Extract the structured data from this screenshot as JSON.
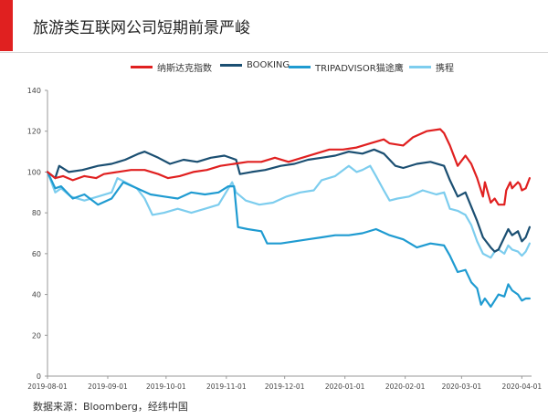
{
  "header": {
    "title": "旅游类互联网公司短期前景严峻",
    "accent_color": "#e02020"
  },
  "footer": {
    "source": "数据来源：Bloomberg，经纬中国"
  },
  "chart_data": {
    "type": "line",
    "title": "旅游类互联网公司短期前景严峻",
    "xlabel": "",
    "ylabel": "",
    "ylim": [
      0,
      140
    ],
    "yticks": [
      0,
      20,
      40,
      60,
      80,
      100,
      120,
      140
    ],
    "xlim": [
      "2019-08-01",
      "2020-04-06"
    ],
    "xticks": [
      "2019-08-01",
      "2019-09-01",
      "2019-10-01",
      "2019-11-01",
      "2019-12-01",
      "2020-01-01",
      "2020-02-01",
      "2020-03-01",
      "2020-04-01"
    ],
    "grid": false,
    "legend_position": "top",
    "series": [
      {
        "name": "纳斯达克指数",
        "color": "#e02020",
        "points": [
          [
            "2019-08-01",
            100
          ],
          [
            "2019-08-05",
            97
          ],
          [
            "2019-08-09",
            98
          ],
          [
            "2019-08-14",
            96
          ],
          [
            "2019-08-20",
            98
          ],
          [
            "2019-08-26",
            97
          ],
          [
            "2019-08-30",
            99
          ],
          [
            "2019-09-06",
            100
          ],
          [
            "2019-09-13",
            101
          ],
          [
            "2019-09-20",
            101
          ],
          [
            "2019-09-27",
            99
          ],
          [
            "2019-10-02",
            97
          ],
          [
            "2019-10-08",
            98
          ],
          [
            "2019-10-15",
            100
          ],
          [
            "2019-10-22",
            101
          ],
          [
            "2019-10-29",
            103
          ],
          [
            "2019-11-05",
            104
          ],
          [
            "2019-11-12",
            105
          ],
          [
            "2019-11-19",
            105
          ],
          [
            "2019-11-26",
            107
          ],
          [
            "2019-12-03",
            105
          ],
          [
            "2019-12-10",
            107
          ],
          [
            "2019-12-17",
            109
          ],
          [
            "2019-12-24",
            111
          ],
          [
            "2019-12-31",
            111
          ],
          [
            "2020-01-07",
            112
          ],
          [
            "2020-01-14",
            114
          ],
          [
            "2020-01-21",
            116
          ],
          [
            "2020-01-24",
            114
          ],
          [
            "2020-01-31",
            113
          ],
          [
            "2020-02-05",
            117
          ],
          [
            "2020-02-12",
            120
          ],
          [
            "2020-02-19",
            121
          ],
          [
            "2020-02-21",
            119
          ],
          [
            "2020-02-24",
            113
          ],
          [
            "2020-02-28",
            103
          ],
          [
            "2020-03-03",
            108
          ],
          [
            "2020-03-06",
            104
          ],
          [
            "2020-03-09",
            97
          ],
          [
            "2020-03-12",
            88
          ],
          [
            "2020-03-13",
            95
          ],
          [
            "2020-03-16",
            85
          ],
          [
            "2020-03-18",
            87
          ],
          [
            "2020-03-20",
            84
          ],
          [
            "2020-03-23",
            84
          ],
          [
            "2020-03-24",
            91
          ],
          [
            "2020-03-26",
            95
          ],
          [
            "2020-03-27",
            92
          ],
          [
            "2020-03-30",
            95
          ],
          [
            "2020-03-31",
            94
          ],
          [
            "2020-04-01",
            91
          ],
          [
            "2020-04-03",
            92
          ],
          [
            "2020-04-05",
            97
          ]
        ]
      },
      {
        "name": "BOOKING",
        "color": "#1b4f72",
        "points": [
          [
            "2019-08-01",
            100
          ],
          [
            "2019-08-05",
            97
          ],
          [
            "2019-08-07",
            103
          ],
          [
            "2019-08-12",
            100
          ],
          [
            "2019-08-19",
            101
          ],
          [
            "2019-08-27",
            103
          ],
          [
            "2019-09-03",
            104
          ],
          [
            "2019-09-10",
            106
          ],
          [
            "2019-09-17",
            109
          ],
          [
            "2019-09-20",
            110
          ],
          [
            "2019-09-27",
            107
          ],
          [
            "2019-10-03",
            104
          ],
          [
            "2019-10-10",
            106
          ],
          [
            "2019-10-17",
            105
          ],
          [
            "2019-10-24",
            107
          ],
          [
            "2019-10-31",
            108
          ],
          [
            "2019-11-06",
            106
          ],
          [
            "2019-11-08",
            99
          ],
          [
            "2019-11-14",
            100
          ],
          [
            "2019-11-21",
            101
          ],
          [
            "2019-11-29",
            103
          ],
          [
            "2019-12-06",
            104
          ],
          [
            "2019-12-13",
            106
          ],
          [
            "2019-12-20",
            107
          ],
          [
            "2019-12-27",
            108
          ],
          [
            "2020-01-03",
            110
          ],
          [
            "2020-01-10",
            109
          ],
          [
            "2020-01-16",
            111
          ],
          [
            "2020-01-21",
            109
          ],
          [
            "2020-01-27",
            103
          ],
          [
            "2020-01-31",
            102
          ],
          [
            "2020-02-07",
            104
          ],
          [
            "2020-02-14",
            105
          ],
          [
            "2020-02-21",
            103
          ],
          [
            "2020-02-24",
            96
          ],
          [
            "2020-02-28",
            88
          ],
          [
            "2020-03-03",
            90
          ],
          [
            "2020-03-06",
            83
          ],
          [
            "2020-03-09",
            76
          ],
          [
            "2020-03-12",
            68
          ],
          [
            "2020-03-16",
            63
          ],
          [
            "2020-03-18",
            61
          ],
          [
            "2020-03-20",
            62
          ],
          [
            "2020-03-23",
            68
          ],
          [
            "2020-03-25",
            72
          ],
          [
            "2020-03-27",
            69
          ],
          [
            "2020-03-30",
            71
          ],
          [
            "2020-04-01",
            66
          ],
          [
            "2020-04-03",
            68
          ],
          [
            "2020-04-05",
            73
          ]
        ]
      },
      {
        "name": "TRIPADVISOR猫途鹰",
        "color": "#1f9bd1",
        "points": [
          [
            "2019-08-01",
            100
          ],
          [
            "2019-08-05",
            92
          ],
          [
            "2019-08-08",
            93
          ],
          [
            "2019-08-14",
            87
          ],
          [
            "2019-08-20",
            89
          ],
          [
            "2019-08-27",
            84
          ],
          [
            "2019-09-03",
            87
          ],
          [
            "2019-09-09",
            95
          ],
          [
            "2019-09-16",
            92
          ],
          [
            "2019-09-23",
            89
          ],
          [
            "2019-09-30",
            88
          ],
          [
            "2019-10-07",
            87
          ],
          [
            "2019-10-14",
            90
          ],
          [
            "2019-10-21",
            89
          ],
          [
            "2019-10-28",
            90
          ],
          [
            "2019-11-02",
            93
          ],
          [
            "2019-11-05",
            93
          ],
          [
            "2019-11-07",
            73
          ],
          [
            "2019-11-12",
            72
          ],
          [
            "2019-11-19",
            71
          ],
          [
            "2019-11-22",
            65
          ],
          [
            "2019-11-29",
            65
          ],
          [
            "2019-12-06",
            66
          ],
          [
            "2019-12-13",
            67
          ],
          [
            "2019-12-20",
            68
          ],
          [
            "2019-12-27",
            69
          ],
          [
            "2020-01-03",
            69
          ],
          [
            "2020-01-10",
            70
          ],
          [
            "2020-01-17",
            72
          ],
          [
            "2020-01-24",
            69
          ],
          [
            "2020-01-31",
            67
          ],
          [
            "2020-02-07",
            63
          ],
          [
            "2020-02-14",
            65
          ],
          [
            "2020-02-21",
            64
          ],
          [
            "2020-02-24",
            59
          ],
          [
            "2020-02-28",
            51
          ],
          [
            "2020-03-03",
            52
          ],
          [
            "2020-03-06",
            46
          ],
          [
            "2020-03-09",
            43
          ],
          [
            "2020-03-11",
            35
          ],
          [
            "2020-03-13",
            38
          ],
          [
            "2020-03-16",
            34
          ],
          [
            "2020-03-18",
            37
          ],
          [
            "2020-03-20",
            40
          ],
          [
            "2020-03-23",
            39
          ],
          [
            "2020-03-25",
            45
          ],
          [
            "2020-03-27",
            42
          ],
          [
            "2020-03-30",
            40
          ],
          [
            "2020-04-01",
            37
          ],
          [
            "2020-04-03",
            38
          ],
          [
            "2020-04-05",
            38
          ]
        ]
      },
      {
        "name": "携程",
        "color": "#7dcdee",
        "points": [
          [
            "2019-08-01",
            100
          ],
          [
            "2019-08-05",
            90
          ],
          [
            "2019-08-08",
            92
          ],
          [
            "2019-08-13",
            88
          ],
          [
            "2019-08-20",
            86
          ],
          [
            "2019-08-27",
            88
          ],
          [
            "2019-09-03",
            90
          ],
          [
            "2019-09-06",
            97
          ],
          [
            "2019-09-10",
            95
          ],
          [
            "2019-09-16",
            92
          ],
          [
            "2019-09-20",
            87
          ],
          [
            "2019-09-24",
            79
          ],
          [
            "2019-09-30",
            80
          ],
          [
            "2019-10-07",
            82
          ],
          [
            "2019-10-14",
            80
          ],
          [
            "2019-10-21",
            82
          ],
          [
            "2019-10-28",
            84
          ],
          [
            "2019-11-04",
            95
          ],
          [
            "2019-11-06",
            90
          ],
          [
            "2019-11-11",
            86
          ],
          [
            "2019-11-18",
            84
          ],
          [
            "2019-11-25",
            85
          ],
          [
            "2019-12-02",
            88
          ],
          [
            "2019-12-09",
            90
          ],
          [
            "2019-12-16",
            91
          ],
          [
            "2019-12-20",
            96
          ],
          [
            "2019-12-27",
            98
          ],
          [
            "2020-01-03",
            103
          ],
          [
            "2020-01-07",
            100
          ],
          [
            "2020-01-10",
            101
          ],
          [
            "2020-01-14",
            103
          ],
          [
            "2020-01-17",
            98
          ],
          [
            "2020-01-21",
            91
          ],
          [
            "2020-01-24",
            86
          ],
          [
            "2020-01-28",
            87
          ],
          [
            "2020-02-03",
            88
          ],
          [
            "2020-02-10",
            91
          ],
          [
            "2020-02-17",
            89
          ],
          [
            "2020-02-21",
            90
          ],
          [
            "2020-02-24",
            82
          ],
          [
            "2020-02-28",
            81
          ],
          [
            "2020-03-03",
            79
          ],
          [
            "2020-03-06",
            74
          ],
          [
            "2020-03-09",
            66
          ],
          [
            "2020-03-12",
            60
          ],
          [
            "2020-03-16",
            58
          ],
          [
            "2020-03-18",
            61
          ],
          [
            "2020-03-20",
            62
          ],
          [
            "2020-03-23",
            60
          ],
          [
            "2020-03-25",
            64
          ],
          [
            "2020-03-27",
            62
          ],
          [
            "2020-03-30",
            61
          ],
          [
            "2020-04-01",
            59
          ],
          [
            "2020-04-03",
            61
          ],
          [
            "2020-04-05",
            65
          ]
        ]
      }
    ]
  }
}
